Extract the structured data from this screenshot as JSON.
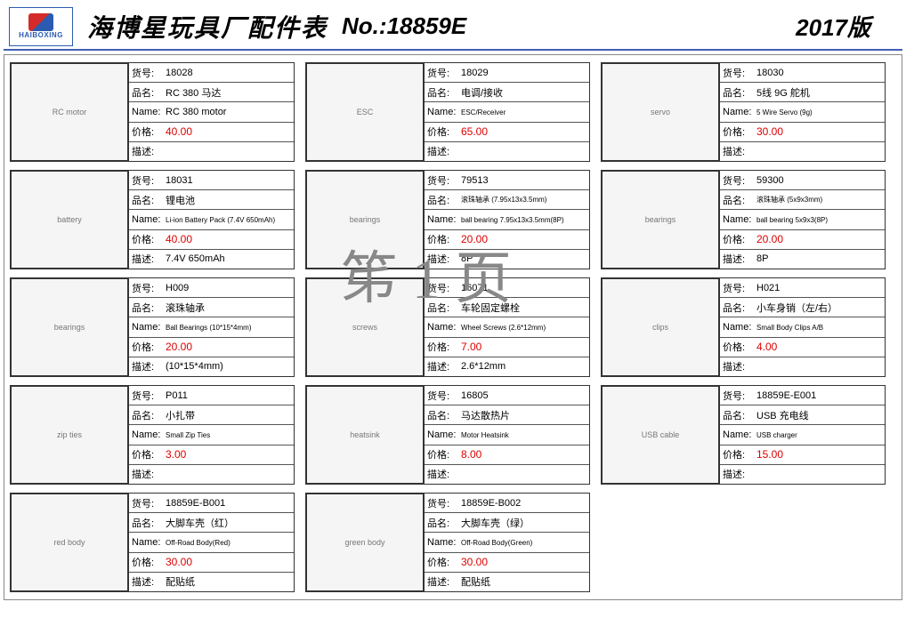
{
  "header": {
    "company": "海博星玩具厂配件表",
    "model_label": "No.:",
    "model": "18859E",
    "year": "2017版",
    "logo_text": "HAIBOXING"
  },
  "watermark": "笫 1 页",
  "label": {
    "sku": "货号:",
    "name_cn": "品名:",
    "name_en": "Name:",
    "price": "价格:",
    "desc": "描述:"
  },
  "items": [
    {
      "sku": "18028",
      "name_cn": "RC 380 马达",
      "name_en": "RC 380 motor",
      "name_en_small": false,
      "price": "40.00",
      "desc": "",
      "img": "RC motor"
    },
    {
      "sku": "18029",
      "name_cn": "电调/接收",
      "name_en": "ESC/Receiver",
      "name_en_small": true,
      "price": "65.00",
      "desc": "",
      "img": "ESC"
    },
    {
      "sku": "18030",
      "name_cn": "5线 9G 舵机",
      "name_en": "5 Wire Servo (9g)",
      "name_en_small": true,
      "price": "30.00",
      "desc": "",
      "img": "servo"
    },
    {
      "sku": "18031",
      "name_cn": "锂电池",
      "name_en": "Li-ion Battery Pack (7.4V 650mAh)",
      "name_en_small": true,
      "price": "40.00",
      "desc": "7.4V 650mAh",
      "img": "battery"
    },
    {
      "sku": "79513",
      "name_cn": "滚珠轴承 (7.95x13x3.5mm)",
      "name_en": "ball bearing 7.95x13x3.5mm(8P)",
      "name_en_small": true,
      "price": "20.00",
      "desc": "8P",
      "img": "bearings"
    },
    {
      "sku": "59300",
      "name_cn": "滚珠轴承 (5x9x3mm)",
      "name_en": "ball bearing 5x9x3(8P)",
      "name_en_small": true,
      "price": "20.00",
      "desc": "8P",
      "img": "bearings"
    },
    {
      "sku": "H009",
      "name_cn": "滚珠轴承",
      "name_en": "Ball Bearings (10*15*4mm)",
      "name_en_small": true,
      "price": "20.00",
      "desc": "(10*15*4mm)",
      "img": "bearings"
    },
    {
      "sku": "16071",
      "name_cn": "车轮固定螺栓",
      "name_en": "Wheel Screws (2.6*12mm)",
      "name_en_small": true,
      "price": "7.00",
      "desc": "2.6*12mm",
      "img": "screws"
    },
    {
      "sku": "H021",
      "name_cn": "小车身销（左/右）",
      "name_en": "Small Body Clips A/B",
      "name_en_small": true,
      "price": "4.00",
      "desc": "",
      "img": "clips"
    },
    {
      "sku": "P011",
      "name_cn": "小扎带",
      "name_en": "Small Zip Ties",
      "name_en_small": true,
      "price": "3.00",
      "desc": "",
      "img": "zip ties"
    },
    {
      "sku": "16805",
      "name_cn": "马达散热片",
      "name_en": "Motor Heatsink",
      "name_en_small": true,
      "price": "8.00",
      "desc": "",
      "img": "heatsink"
    },
    {
      "sku": "18859E-E001",
      "name_cn": "USB 充电线",
      "name_en": "USB charger",
      "name_en_small": true,
      "price": "15.00",
      "desc": "",
      "img": "USB cable"
    },
    {
      "sku": "18859E-B001",
      "name_cn": "大脚车壳（红）",
      "name_en": "Off-Road Body(Red)",
      "name_en_small": true,
      "price": "30.00",
      "desc": "配贴纸",
      "img": "red body"
    },
    {
      "sku": "18859E-B002",
      "name_cn": "大脚车壳（绿）",
      "name_en": "Off-Road Body(Green)",
      "name_en_small": true,
      "price": "30.00",
      "desc": "配贴纸",
      "img": "green body"
    }
  ]
}
